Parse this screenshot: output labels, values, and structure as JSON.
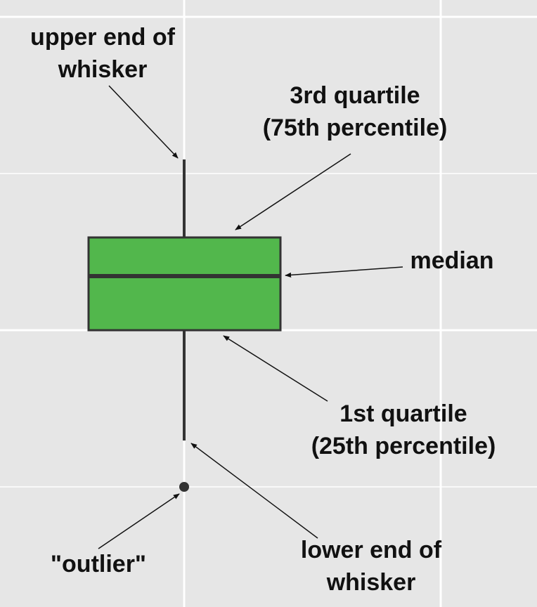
{
  "colors": {
    "background": "#e6e6e6",
    "grid": "#ffffff",
    "box_fill": "#52b74c",
    "box_stroke": "#333333",
    "arrow": "#111111"
  },
  "labels": {
    "upper_whisker": [
      "upper end of",
      "whisker"
    ],
    "third_quartile": [
      "3rd quartile",
      "(75th percentile)"
    ],
    "median": [
      "median"
    ],
    "first_quartile": [
      "1st quartile",
      "(25th percentile)"
    ],
    "outlier": [
      "\"outlier\""
    ],
    "lower_whisker": [
      "lower end of",
      "whisker"
    ]
  }
}
